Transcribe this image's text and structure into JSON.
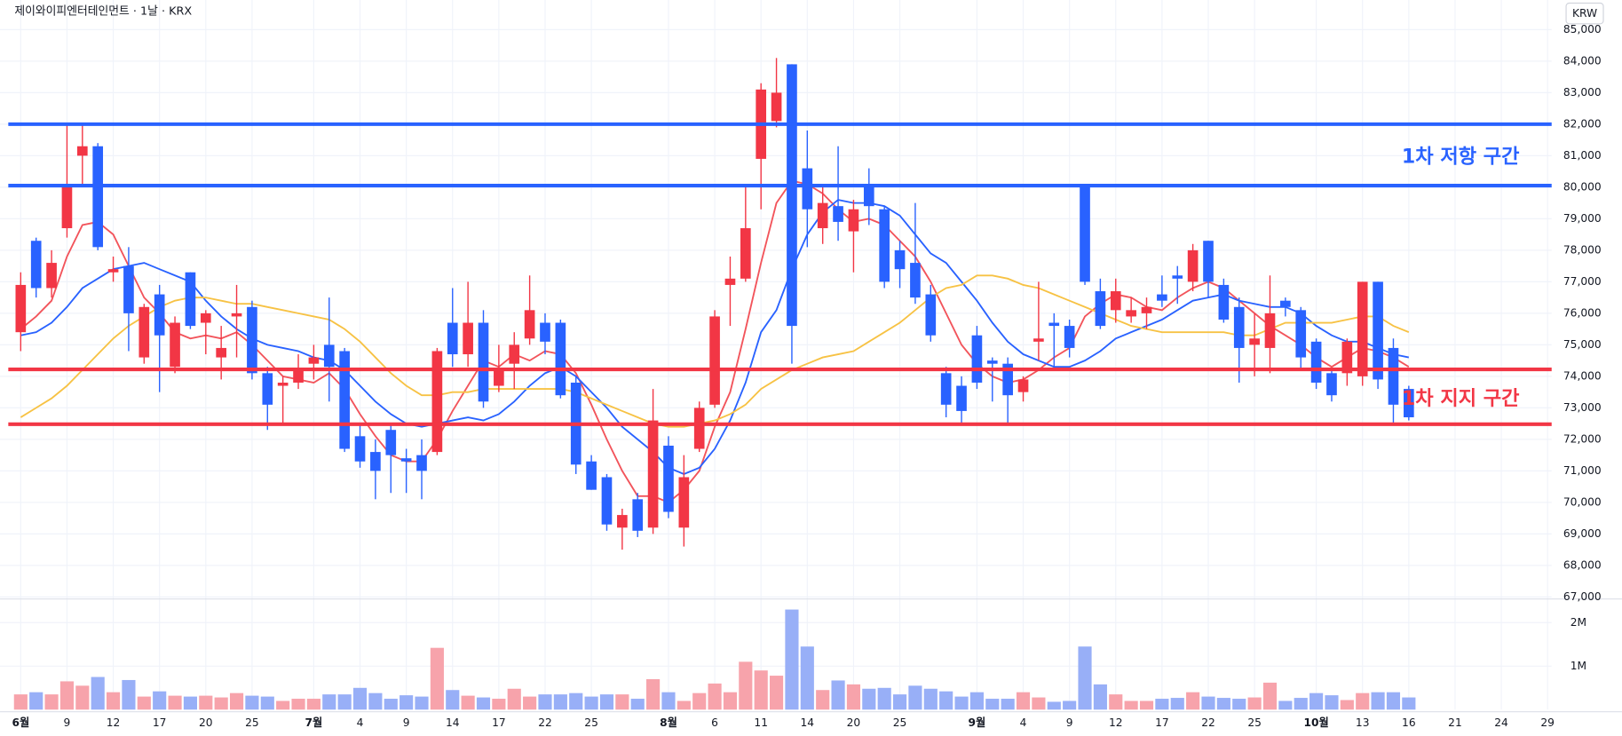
{
  "chart_data": {
    "type": "candlestick",
    "title": "제이와이피엔터테인먼트 · 1날 · KRX",
    "currency": "KRW",
    "categories": [
      "6월",
      null,
      null,
      "9",
      null,
      null,
      "12",
      null,
      null,
      "17",
      null,
      null,
      "20",
      null,
      null,
      "25",
      null,
      null,
      null,
      "7월",
      null,
      null,
      "4",
      null,
      null,
      "9",
      null,
      null,
      "14",
      null,
      null,
      "17",
      null,
      null,
      "22",
      null,
      null,
      "25",
      null,
      null,
      null,
      null,
      "8월",
      null,
      null,
      "6",
      null,
      null,
      "11",
      null,
      null,
      "14",
      null,
      null,
      "20",
      null,
      null,
      "25",
      null,
      null,
      null,
      null,
      "9월",
      null,
      null,
      "4",
      null,
      null,
      "9",
      null,
      null,
      "12",
      null,
      null,
      "17",
      null,
      null,
      "22",
      null,
      null,
      "25",
      null,
      null,
      null,
      "10월",
      null,
      null,
      "13",
      null,
      null,
      "16",
      null,
      null,
      "21",
      null,
      null,
      "24",
      null,
      null,
      "29"
    ],
    "open": [
      75400,
      78300,
      76800,
      78700,
      81000,
      81300,
      77300,
      77500,
      74600,
      76600,
      74300,
      77300,
      75700,
      74600,
      75900,
      76200,
      74100,
      73700,
      73800,
      74400,
      75000,
      74800,
      72100,
      71600,
      72300,
      71400,
      71500,
      71600,
      75700,
      74700,
      75700,
      73700,
      74400,
      75200,
      75700,
      75700,
      73800,
      71300,
      70800,
      69200,
      70100,
      69200,
      71800,
      69200,
      71700,
      73100,
      76900,
      77100,
      80900,
      82100,
      83900,
      80600,
      78700,
      79400,
      78600,
      80000,
      79300,
      78000,
      77600,
      76600,
      74100,
      73700,
      75300,
      74500,
      74400,
      73500,
      75100,
      75700,
      75600,
      80000,
      76700,
      76100,
      75900,
      76000,
      76600,
      77200,
      77000,
      78300,
      76900,
      76200,
      75000,
      74900,
      76400,
      76100,
      75100,
      74100,
      74100,
      74000,
      77000,
      74900,
      73600,
      null,
      null,
      null,
      null,
      null,
      null,
      null,
      null,
      null
    ],
    "high": [
      77300,
      78400,
      78000,
      82000,
      82000,
      81400,
      77800,
      78100,
      76300,
      76900,
      75900,
      77300,
      76100,
      75600,
      76900,
      76400,
      74300,
      74000,
      74700,
      75000,
      76500,
      74900,
      72500,
      72000,
      72500,
      71700,
      72000,
      74900,
      76800,
      77000,
      76100,
      75000,
      75400,
      77200,
      76000,
      75800,
      74000,
      71500,
      70900,
      69800,
      70300,
      73600,
      72100,
      71500,
      73200,
      76100,
      77800,
      80000,
      83300,
      84100,
      83900,
      81800,
      80000,
      81300,
      79600,
      80600,
      79400,
      78300,
      79500,
      76900,
      74300,
      74000,
      75600,
      74600,
      74600,
      74000,
      77000,
      76000,
      75800,
      80000,
      77100,
      77100,
      76500,
      76500,
      77200,
      77500,
      78200,
      78300,
      77100,
      76500,
      76000,
      77200,
      76500,
      76200,
      75200,
      74200,
      75200,
      77000,
      77000,
      75200,
      73700,
      null,
      null,
      null,
      null,
      null,
      null,
      null,
      null,
      null
    ],
    "low": [
      74800,
      76500,
      76500,
      78400,
      80000,
      78000,
      77000,
      74800,
      74400,
      73500,
      74100,
      75500,
      74700,
      73900,
      74600,
      73900,
      72300,
      72500,
      73600,
      73900,
      73200,
      71600,
      71100,
      70100,
      70300,
      70300,
      70100,
      71500,
      74300,
      74300,
      73000,
      73500,
      73600,
      75000,
      74700,
      73300,
      70900,
      70400,
      69100,
      68500,
      68900,
      69000,
      69500,
      68600,
      71600,
      73000,
      75600,
      77000,
      79300,
      81900,
      74400,
      78100,
      78200,
      78300,
      77300,
      78800,
      76800,
      76800,
      76300,
      75100,
      72700,
      72500,
      73600,
      73200,
      72500,
      73200,
      74500,
      74300,
      74600,
      76900,
      75500,
      75700,
      75700,
      75500,
      76200,
      76300,
      76700,
      76500,
      75700,
      73800,
      74000,
      74100,
      75900,
      74200,
      73600,
      73200,
      73700,
      73700,
      73600,
      72500,
      72600,
      null,
      null,
      null,
      null,
      null,
      null,
      null,
      null,
      null
    ],
    "close": [
      76900,
      76800,
      77600,
      80000,
      81300,
      78100,
      77400,
      76000,
      76200,
      75300,
      75700,
      75600,
      76000,
      74900,
      76000,
      74100,
      73100,
      73800,
      74200,
      74600,
      74300,
      71700,
      71300,
      71000,
      71500,
      71300,
      71000,
      74800,
      74700,
      75700,
      73200,
      74200,
      75000,
      76100,
      75100,
      73400,
      71200,
      70400,
      69300,
      69600,
      69100,
      72600,
      69700,
      70800,
      73000,
      75900,
      77100,
      78700,
      83100,
      83000,
      75600,
      79300,
      79500,
      78900,
      79300,
      79400,
      77000,
      77400,
      76500,
      75300,
      73100,
      72900,
      73800,
      74400,
      73400,
      73900,
      75200,
      75600,
      74900,
      77000,
      75600,
      76700,
      76100,
      76200,
      76400,
      77100,
      78000,
      77000,
      75800,
      74900,
      75200,
      76000,
      76200,
      74600,
      73800,
      73400,
      75100,
      77000,
      73900,
      73100,
      72700,
      null,
      null,
      null,
      null,
      null,
      null,
      null,
      null,
      null
    ],
    "up_color": "#f23645",
    "down_color": "#2962ff",
    "ylim": [
      66970,
      85940
    ],
    "yticks": [
      {
        "value": 67000,
        "label": "67,000"
      },
      {
        "value": 68000,
        "label": "68,000"
      },
      {
        "value": 69000,
        "label": "69,000"
      },
      {
        "value": 70000,
        "label": "70,000"
      },
      {
        "value": 71000,
        "label": "71,000"
      },
      {
        "value": 72000,
        "label": "72,000"
      },
      {
        "value": 73000,
        "label": "73,000"
      },
      {
        "value": 74000,
        "label": "74,000"
      },
      {
        "value": 75000,
        "label": "75,000"
      },
      {
        "value": 76000,
        "label": "76,000"
      },
      {
        "value": 77000,
        "label": "77,000"
      },
      {
        "value": 78000,
        "label": "78,000"
      },
      {
        "value": 79000,
        "label": "79,000"
      },
      {
        "value": 80000,
        "label": "80,000"
      },
      {
        "value": 81000,
        "label": "81,000"
      },
      {
        "value": 82000,
        "label": "82,000"
      },
      {
        "value": 83000,
        "label": "83,000"
      },
      {
        "value": 84000,
        "label": "84,000"
      },
      {
        "value": 85000,
        "label": "85,000"
      }
    ],
    "grid": true,
    "volume": {
      "values": [
        350000,
        400000,
        350000,
        650000,
        550000,
        750000,
        400000,
        680000,
        300000,
        420000,
        320000,
        300000,
        320000,
        280000,
        380000,
        320000,
        300000,
        200000,
        250000,
        250000,
        350000,
        350000,
        500000,
        380000,
        250000,
        330000,
        300000,
        1420000,
        450000,
        320000,
        280000,
        250000,
        480000,
        300000,
        350000,
        350000,
        380000,
        300000,
        350000,
        350000,
        250000,
        700000,
        400000,
        200000,
        380000,
        600000,
        400000,
        1100000,
        900000,
        780000,
        2300000,
        1450000,
        450000,
        670000,
        580000,
        480000,
        500000,
        350000,
        550000,
        480000,
        420000,
        300000,
        400000,
        250000,
        250000,
        400000,
        280000,
        180000,
        200000,
        1450000,
        580000,
        350000,
        200000,
        200000,
        250000,
        270000,
        400000,
        300000,
        270000,
        250000,
        280000,
        620000,
        200000,
        270000,
        380000,
        330000,
        220000,
        380000,
        400000,
        400000,
        280000,
        null,
        null,
        null,
        null,
        null,
        null,
        null,
        null,
        null
      ],
      "ylim": [
        0,
        2520000
      ],
      "yticks": [
        {
          "value": 1000000,
          "label": "1M"
        },
        {
          "value": 2000000,
          "label": "2M"
        }
      ],
      "up_color": "#f7a3ab",
      "down_color": "#98aff7"
    },
    "moving_averages": [
      {
        "color": "#f2545b",
        "values": [
          75500,
          75900,
          76400,
          77800,
          78800,
          78900,
          78500,
          77500,
          76500,
          76000,
          75400,
          75200,
          75300,
          75200,
          75400,
          75000,
          74500,
          74000,
          73900,
          73800,
          74100,
          73600,
          72800,
          72100,
          71500,
          71300,
          71300,
          72000,
          72900,
          73700,
          74500,
          74300,
          74700,
          74500,
          74800,
          74700,
          74100,
          73100,
          72000,
          71000,
          70200,
          70200,
          70000,
          70400,
          71000,
          72400,
          73500,
          75500,
          77600,
          79500,
          80200,
          80100,
          79800,
          79300,
          78900,
          79000,
          78800,
          78300,
          77800,
          77000,
          76000,
          75000,
          74400,
          74000,
          73800,
          73900,
          74200,
          74600,
          74900,
          75900,
          76300,
          76600,
          76500,
          76200,
          76100,
          76500,
          76800,
          77000,
          76800,
          76400,
          76000,
          75600,
          75300,
          75000,
          74600,
          74300,
          74600,
          74900,
          74800,
          74600,
          74300,
          null,
          null,
          null,
          null,
          null,
          null,
          null,
          null,
          null
        ]
      },
      {
        "color": "#2962ff",
        "values": [
          75300,
          75400,
          75700,
          76200,
          76800,
          77100,
          77400,
          77500,
          77600,
          77400,
          77200,
          77000,
          76400,
          75900,
          75500,
          75200,
          75000,
          74900,
          74800,
          74600,
          74500,
          74200,
          73700,
          73200,
          72800,
          72500,
          72400,
          72500,
          72600,
          72700,
          72600,
          72800,
          73200,
          73700,
          74100,
          74300,
          74000,
          73500,
          73000,
          72400,
          72000,
          71600,
          71100,
          70900,
          71100,
          71700,
          72600,
          73800,
          75400,
          76100,
          77400,
          78500,
          79200,
          79600,
          79500,
          79500,
          79400,
          79100,
          78500,
          77900,
          77600,
          77000,
          76400,
          75700,
          75100,
          74700,
          74500,
          74300,
          74300,
          74500,
          74800,
          75200,
          75400,
          75600,
          75800,
          76100,
          76400,
          76500,
          76600,
          76400,
          76300,
          76200,
          76200,
          76000,
          75600,
          75300,
          75100,
          75100,
          74900,
          74700,
          74600,
          null,
          null,
          null,
          null,
          null,
          null,
          null,
          null,
          null
        ]
      },
      {
        "color": "#f7c244",
        "values": [
          72700,
          73000,
          73300,
          73700,
          74200,
          74700,
          75200,
          75600,
          75900,
          76200,
          76400,
          76500,
          76500,
          76400,
          76300,
          76300,
          76200,
          76100,
          76000,
          75900,
          75800,
          75500,
          75100,
          74600,
          74100,
          73700,
          73400,
          73400,
          73500,
          73500,
          73600,
          73600,
          73600,
          73600,
          73600,
          73600,
          73500,
          73300,
          73100,
          72900,
          72700,
          72500,
          72400,
          72400,
          72500,
          72600,
          72800,
          73100,
          73600,
          73900,
          74200,
          74400,
          74600,
          74700,
          74800,
          75100,
          75400,
          75700,
          76100,
          76500,
          76800,
          76900,
          77200,
          77200,
          77100,
          76900,
          76800,
          76600,
          76400,
          76200,
          76000,
          75800,
          75600,
          75500,
          75400,
          75400,
          75400,
          75400,
          75400,
          75300,
          75300,
          75500,
          75700,
          75700,
          75700,
          75700,
          75800,
          75900,
          75900,
          75600,
          75400,
          null,
          null,
          null,
          null,
          null,
          null,
          null,
          null,
          null
        ]
      }
    ],
    "levels": [
      {
        "value": 82000,
        "color": "#2962ff"
      },
      {
        "value": 80050,
        "color": "#2962ff"
      },
      {
        "value": 74220,
        "color": "#f23645"
      },
      {
        "value": 72480,
        "color": "#f23645"
      }
    ],
    "annotations": [
      {
        "text": "1차 저항 구간",
        "color": "#2962ff"
      },
      {
        "text": "1차 지지 구간",
        "color": "#f23645"
      }
    ]
  }
}
